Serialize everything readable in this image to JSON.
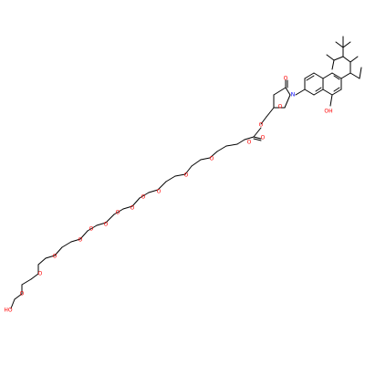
{
  "molecule": {
    "colors": {
      "background": "#ffffff",
      "bond": "#000000",
      "oxygen": "#ff0000",
      "nitrogen": "#0000ff"
    },
    "atom_labels": [
      {
        "text": "N",
        "element": "N"
      },
      {
        "text": "O",
        "element": "O"
      },
      {
        "text": "O",
        "element": "O"
      },
      {
        "text": "OH",
        "element": "O"
      },
      {
        "text": "O",
        "element": "O"
      },
      {
        "text": "O",
        "element": "O"
      },
      {
        "text": "O",
        "element": "O"
      },
      {
        "text": "O",
        "element": "O"
      },
      {
        "text": "O",
        "element": "O"
      },
      {
        "text": "O",
        "element": "O"
      },
      {
        "text": "O",
        "element": "O"
      },
      {
        "text": "O",
        "element": "O"
      },
      {
        "text": "O",
        "element": "O"
      },
      {
        "text": "O",
        "element": "O"
      },
      {
        "text": "O",
        "element": "O"
      },
      {
        "text": "O",
        "element": "O"
      },
      {
        "text": "O",
        "element": "O"
      },
      {
        "text": "O",
        "element": "O"
      },
      {
        "text": "O",
        "element": "O"
      },
      {
        "text": "HO",
        "element": "O"
      }
    ]
  }
}
